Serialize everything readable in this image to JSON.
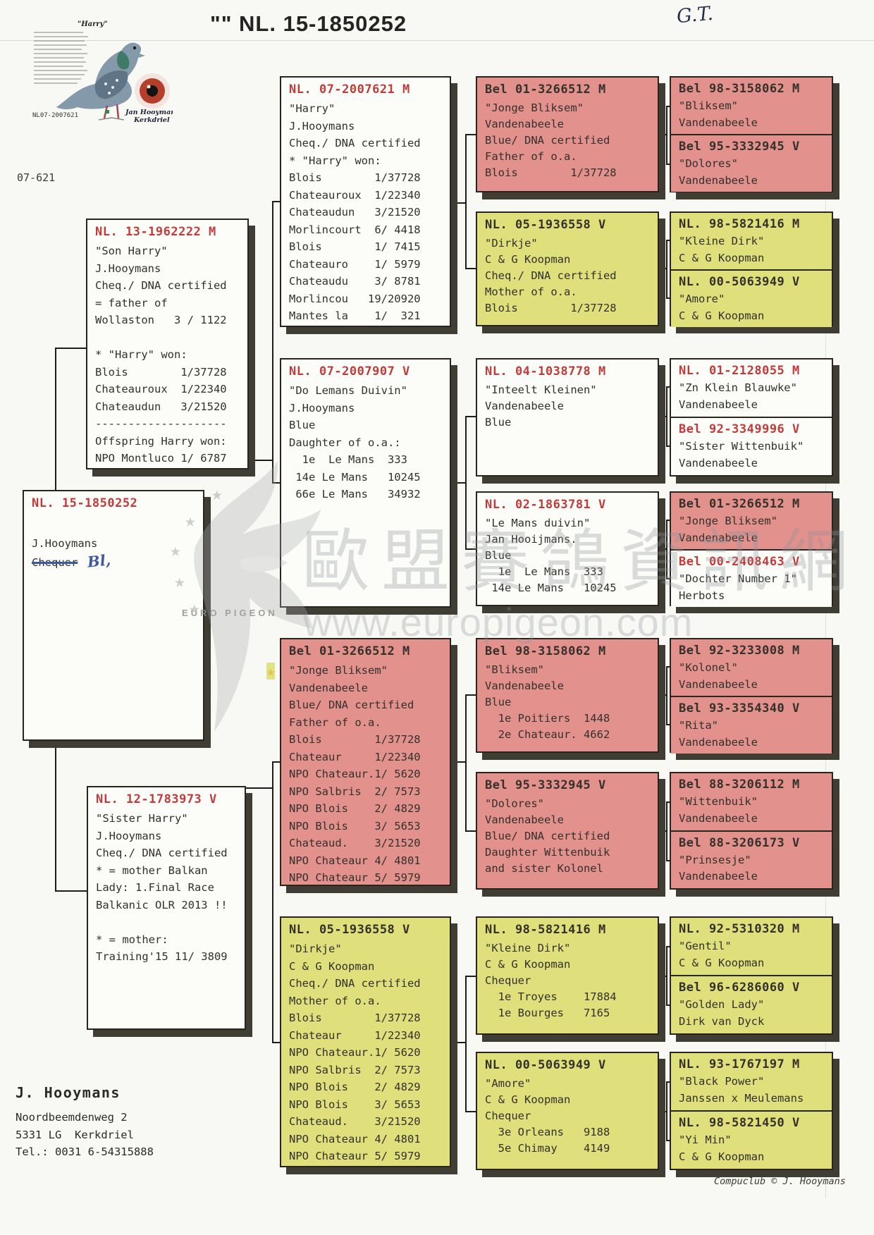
{
  "page": {
    "title_mark": "\"\"",
    "title": "NL. 15-1850252",
    "handwritten_initials": "G.T.",
    "ring_note": "07-621",
    "credit": "Compuclub © J. Hooymans",
    "footer": {
      "name": "J. Hooymans",
      "address_line1": "Noordbeemdenweg 2",
      "address_line2": "5331 LG  Kerkdriel",
      "phone": "Tel.: 0031 6-54315888"
    }
  },
  "photo": {
    "title": "\"Harry\"",
    "breeder": "Jan Hooymans",
    "city": "Kerkdriel",
    "ring": "NL07-2007621"
  },
  "watermark": {
    "chinese": "歐盟賽鴿資訊網",
    "url": "www.europigeon.com",
    "brand": "EURO PIGEON"
  },
  "boxes": {
    "b1": {
      "header": "NL. 13-1962222 M",
      "lines": [
        "\"Son Harry\"",
        "J.Hooymans",
        "Cheq./ DNA certified",
        "= father of",
        "Wollaston   3 / 1122",
        "",
        "* \"Harry\" won:",
        "Blois        1/37728",
        "Chateauroux  1/22340",
        "Chateaudun   3/21520",
        "--------------------",
        "Offspring Harry won:",
        "NPO Montluco 1/ 6787"
      ]
    },
    "b2": {
      "header": "NL. 15-1850252",
      "owner": "J.Hooymans",
      "strike": "Chequer",
      "handwritten": "Bl,"
    },
    "b3": {
      "header": "NL. 12-1783973 V",
      "lines": [
        "\"Sister Harry\"",
        "J.Hooymans",
        "Cheq./ DNA certified",
        "* = mother Balkan",
        "Lady: 1.Final Race",
        "Balkanic OLR 2013 !!",
        "",
        "* = mother:",
        "Training'15 11/ 3809"
      ]
    },
    "b4": {
      "header": "NL. 07-2007621 M",
      "lines": [
        "\"Harry\"",
        "J.Hooymans",
        "Cheq./ DNA certified",
        "* \"Harry\" won:",
        "Blois        1/37728",
        "Chateauroux  1/22340",
        "Chateaudun   3/21520",
        "Morlincourt  6/ 4418",
        "Blois        1/ 7415",
        "Chateauro    1/ 5979",
        "Chateaudu    3/ 8781",
        "Morlincou   19/20920",
        "Mantes la    1/  321"
      ]
    },
    "b5": {
      "header": "NL. 07-2007907 V",
      "lines": [
        "\"Do Lemans Duivin\"",
        "J.Hooymans",
        "Blue",
        "Daughter of o.a.:",
        "  1e  Le Mans  333",
        " 14e Le Mans   10245",
        " 66e Le Mans   34932"
      ]
    },
    "b6": {
      "header": "Bel 01-3266512 M",
      "lines": [
        "\"Jonge Bliksem\"",
        "Vandenabeele",
        "Blue/ DNA certified",
        "Father of o.a.",
        "Blois        1/37728",
        "Chateaur     1/22340",
        "NPO Chateaur.1/ 5620",
        "NPO Salbris  2/ 7573",
        "NPO Blois    2/ 4829",
        "NPO Blois    3/ 5653",
        "Chateaud.    3/21520",
        "NPO Chateaur 4/ 4801",
        "NPO Chateaur 5/ 5979"
      ]
    },
    "b7": {
      "header": "NL. 05-1936558 V",
      "lines": [
        "\"Dirkje\"",
        "C & G Koopman",
        "Cheq./ DNA certified",
        "Mother of o.a.",
        "Blois        1/37728",
        "Chateaur     1/22340",
        "NPO Chateaur.1/ 5620",
        "NPO Salbris  2/ 7573",
        "NPO Blois    2/ 4829",
        "NPO Blois    3/ 5653",
        "Chateaud.    3/21520",
        "NPO Chateaur 4/ 4801",
        "NPO Chateaur 5/ 5979"
      ]
    },
    "b8": {
      "header": "Bel 01-3266512 M",
      "lines": [
        "\"Jonge Bliksem\"",
        "Vandenabeele",
        "Blue/ DNA certified",
        "Father of o.a.",
        "Blois        1/37728"
      ]
    },
    "b9": {
      "header": "NL. 05-1936558 V",
      "lines": [
        "\"Dirkje\"",
        "C & G Koopman",
        "Cheq./ DNA certified",
        "Mother of o.a.",
        "Blois        1/37728"
      ]
    },
    "b10": {
      "header": "NL. 04-1038778 M",
      "lines": [
        "\"Inteelt Kleinen\"",
        "Vandenabeele",
        "Blue"
      ]
    },
    "b11": {
      "header": "NL. 02-1863781 V",
      "lines": [
        "\"Le Mans duivin\"",
        "Jan Hooijmans.",
        "Blue",
        "  1e  Le Mans  333",
        " 14e Le Mans   10245"
      ]
    },
    "b12": {
      "header": "Bel 98-3158062 M",
      "lines": [
        "\"Bliksem\"",
        "Vandenabeele",
        "Blue",
        "  1e Poitiers  1448",
        "  2e Chateaur. 4662"
      ]
    },
    "b13": {
      "header": "Bel 95-3332945 V",
      "lines": [
        "\"Dolores\"",
        "Vandenabeele",
        "Blue/ DNA certified",
        "Daughter Wittenbuik",
        "and sister Kolonel"
      ]
    },
    "b14": {
      "header": "NL. 98-5821416 M",
      "lines": [
        "\"Kleine Dirk\"",
        "C & G Koopman",
        "Chequer",
        "  1e Troyes    17884",
        "  1e Bourges   7165"
      ]
    },
    "b15": {
      "header": "NL. 00-5063949 V",
      "lines": [
        "\"Amore\"",
        "C & G Koopman",
        "Chequer",
        "  3e Orleans   9188",
        "  5e Chimay    4149"
      ]
    }
  },
  "pairs": {
    "p1": {
      "s1": {
        "header": "Bel 98-3158062 M",
        "lines": [
          "\"Bliksem\"",
          "Vandenabeele"
        ]
      },
      "s2": {
        "header": "Bel 95-3332945 V",
        "lines": [
          "\"Dolores\"",
          "Vandenabeele"
        ]
      }
    },
    "p2": {
      "s1": {
        "header": "NL. 98-5821416 M",
        "lines": [
          "\"Kleine Dirk\"",
          "C & G Koopman"
        ]
      },
      "s2": {
        "header": "NL. 00-5063949 V",
        "lines": [
          "\"Amore\"",
          "C & G Koopman"
        ]
      }
    },
    "p3": {
      "s1": {
        "header": "NL. 01-2128055 M",
        "lines": [
          "\"Zn Klein Blauwke\"",
          "Vandenabeele"
        ]
      },
      "s2": {
        "header": "Bel 92-3349996 V",
        "lines": [
          "\"Sister Wittenbuik\"",
          "Vandenabeele"
        ]
      }
    },
    "p4": {
      "s1": {
        "header": "Bel 01-3266512 M",
        "lines": [
          "\"Jonge Bliksem\"",
          "Vandenabeele"
        ]
      },
      "s2": {
        "header": "Bel 00-2408463 V",
        "lines": [
          "\"Dochter Number 1\"",
          "Herbots"
        ]
      }
    },
    "p5": {
      "s1": {
        "header": "Bel 92-3233008 M",
        "lines": [
          "\"Kolonel\"",
          "Vandenabeele"
        ]
      },
      "s2": {
        "header": "Bel 93-3354340 V",
        "lines": [
          "\"Rita\"",
          "Vandenabeele"
        ]
      }
    },
    "p6": {
      "s1": {
        "header": "Bel 88-3206112 M",
        "lines": [
          "\"Wittenbuik\"",
          "Vandenabeele"
        ]
      },
      "s2": {
        "header": "Bel 88-3206173 V",
        "lines": [
          "\"Prinsesje\"",
          "Vandenabeele"
        ]
      }
    },
    "p7": {
      "s1": {
        "header": "NL. 92-5310320 M",
        "lines": [
          "\"Gentil\"",
          "C & G Koopman"
        ]
      },
      "s2": {
        "header": "Bel 96-6286060 V",
        "lines": [
          "\"Golden Lady\"",
          "Dirk van Dyck"
        ]
      }
    },
    "p8": {
      "s1": {
        "header": "NL. 93-1767197 M",
        "lines": [
          "\"Black Power\"",
          "Janssen x Meulemans"
        ]
      },
      "s2": {
        "header": "NL. 98-5821450 V",
        "lines": [
          "\"Yi Min\"",
          "C & G Koopman"
        ]
      }
    }
  }
}
